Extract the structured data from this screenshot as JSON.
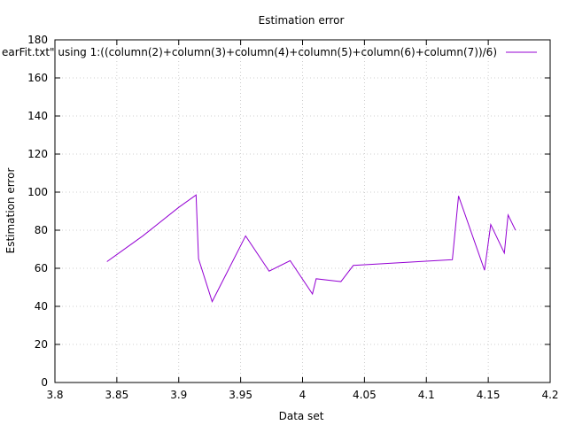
{
  "chart_data": {
    "type": "line",
    "title": "Estimation error",
    "xlabel": "Data set",
    "ylabel": "Estimation error",
    "xlim": [
      3.8,
      4.2
    ],
    "ylim": [
      0,
      180
    ],
    "x_ticks": [
      3.8,
      3.85,
      3.9,
      3.95,
      4,
      4.05,
      4.1,
      4.15,
      4.2
    ],
    "x_tick_labels": [
      "3.8",
      "3.85",
      "3.9",
      "3.95",
      "4",
      "4.05",
      "4.1",
      "4.15",
      "4.2"
    ],
    "y_ticks": [
      0,
      20,
      40,
      60,
      80,
      100,
      120,
      140,
      160,
      180
    ],
    "y_tick_labels": [
      "0",
      "20",
      "40",
      "60",
      "80",
      "100",
      "120",
      "140",
      "160",
      "180"
    ],
    "grid": true,
    "legend_position": "top-right",
    "colors": {
      "series": "#9400d3",
      "grid": "#c0c0c0",
      "axis": "#000000"
    },
    "series": [
      {
        "name": "earFit.txt\" using 1:((column(2)+column(3)+column(4)+column(5)+column(6)+column(7))/6)",
        "x": [
          3.842,
          3.871,
          3.9,
          3.914,
          3.916,
          3.927,
          3.954,
          3.973,
          3.99,
          4.008,
          4.011,
          4.031,
          4.041,
          4.121,
          4.126,
          4.147,
          4.152,
          4.163,
          4.166,
          4.172
        ],
        "y": [
          63.5,
          77,
          92,
          98.5,
          65,
          42.5,
          77,
          58.5,
          64,
          46.5,
          54.5,
          53,
          61.5,
          64.5,
          98,
          59,
          83,
          68,
          88,
          80
        ]
      }
    ]
  }
}
